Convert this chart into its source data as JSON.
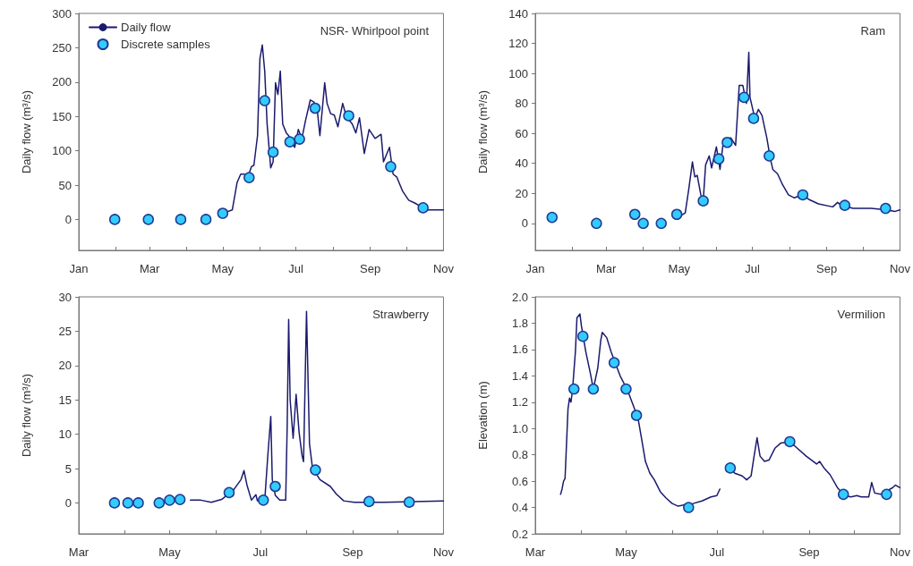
{
  "chart_data": [
    {
      "type": "line",
      "title": "NSR- Whirlpool point",
      "ylabel": "Daily flow (m³/s)",
      "legend": "top left",
      "grid": false,
      "xlim": [
        "--01-01",
        "--11-01"
      ],
      "xticks": [
        {
          "value": "--01-01",
          "label": "Jan"
        },
        {
          "value": "--02-01",
          "label": null
        },
        {
          "value": "--03-01",
          "label": "Mar"
        },
        {
          "value": "--04-01",
          "label": null
        },
        {
          "value": "--05-01",
          "label": "May"
        },
        {
          "value": "--06-01",
          "label": null
        },
        {
          "value": "--07-01",
          "label": "Jul"
        },
        {
          "value": "--08-01",
          "label": null
        },
        {
          "value": "--09-01",
          "label": "Sep"
        },
        {
          "value": "--10-01",
          "label": null
        },
        {
          "value": "--11-01",
          "label": "Nov"
        }
      ],
      "ylim": [
        -45,
        300
      ],
      "yticks": [
        0,
        50,
        100,
        150,
        200,
        250,
        300
      ],
      "series": [
        {
          "name": "Daily flow",
          "type": "line",
          "marker": "none",
          "color": "#1a1a6e",
          "x": [
            "--05-03",
            "--05-09",
            "--05-13",
            "--05-16",
            "--05-19",
            "--05-22",
            "--05-25",
            "--05-27",
            "--05-30",
            "--06-01",
            "--06-03",
            "--06-05",
            "--06-07",
            "--06-10",
            "--06-12",
            "--06-14",
            "--06-16",
            "--06-18",
            "--06-20",
            "--06-23",
            "--06-25",
            "--06-30",
            "--07-03",
            "--07-06",
            "--07-09",
            "--07-13",
            "--07-16",
            "--07-19",
            "--07-21",
            "--07-25",
            "--07-27",
            "--07-30",
            "--08-02",
            "--08-05",
            "--08-09",
            "--08-12",
            "--08-17",
            "--08-20",
            "--08-23",
            "--08-27",
            "--08-31",
            "--09-05",
            "--09-10",
            "--09-12",
            "--09-17",
            "--09-20",
            "--09-23",
            "--09-28",
            "--10-03",
            "--10-08",
            "--10-13",
            "--10-18",
            "--11-01"
          ],
          "values": [
            10,
            14,
            54,
            66,
            66,
            62,
            77,
            79,
            122,
            234,
            254,
            216,
            139,
            75,
            84,
            199,
            182,
            216,
            139,
            126,
            122,
            105,
            131,
            118,
            144,
            174,
            171,
            156,
            122,
            199,
            169,
            154,
            152,
            135,
            169,
            150,
            139,
            126,
            148,
            96,
            131,
            118,
            124,
            84,
            105,
            66,
            62,
            41,
            28,
            24,
            19,
            14,
            14
          ]
        },
        {
          "name": "Discrete samples",
          "type": "scatter",
          "marker": "circle",
          "color": "#33ccff",
          "x": [
            "--01-31",
            "--02-28",
            "--03-27",
            "--04-17",
            "--05-01",
            "--05-23",
            "--06-05",
            "--06-12",
            "--06-26",
            "--07-04",
            "--07-17",
            "--08-14",
            "--09-18",
            "--10-15"
          ],
          "values": [
            0,
            0,
            0,
            0,
            9,
            61,
            173,
            98,
            113,
            117,
            162,
            151,
            77,
            17
          ]
        }
      ]
    },
    {
      "type": "line",
      "title": "Ram",
      "ylabel": "Daily flow (m³/s)",
      "grid": false,
      "xlim": [
        "--01-01",
        "--11-01"
      ],
      "xticks": [
        {
          "value": "--01-01",
          "label": "Jan"
        },
        {
          "value": "--02-01",
          "label": null
        },
        {
          "value": "--03-01",
          "label": "Mar"
        },
        {
          "value": "--04-01",
          "label": null
        },
        {
          "value": "--05-01",
          "label": "May"
        },
        {
          "value": "--06-01",
          "label": null
        },
        {
          "value": "--07-01",
          "label": "Jul"
        },
        {
          "value": "--08-01",
          "label": null
        },
        {
          "value": "--09-01",
          "label": "Sep"
        },
        {
          "value": "--10-01",
          "label": null
        },
        {
          "value": "--11-01",
          "label": "Nov"
        }
      ],
      "ylim": [
        -18,
        140
      ],
      "yticks": [
        0,
        20,
        40,
        60,
        80,
        100,
        120,
        140
      ],
      "series": [
        {
          "type": "line",
          "marker": "none",
          "color": "#1a1a6e",
          "x": [
            "--05-02",
            "--05-06",
            "--05-09",
            "--05-12",
            "--05-14",
            "--05-16",
            "--05-19",
            "--05-21",
            "--05-23",
            "--05-26",
            "--05-28",
            "--06-01",
            "--06-04",
            "--06-07",
            "--06-13",
            "--06-17",
            "--06-20",
            "--06-23",
            "--06-26",
            "--06-28",
            "--06-29",
            "--07-03",
            "--07-06",
            "--07-09",
            "--07-13",
            "--07-16",
            "--07-18",
            "--07-22",
            "--07-26",
            "--07-31",
            "--08-05",
            "--08-11",
            "--08-17",
            "--08-25",
            "--09-06",
            "--09-10",
            "--09-13",
            "--09-23",
            "--10-08",
            "--10-21",
            "--10-28",
            "--11-01"
          ],
          "values": [
            5,
            7,
            23,
            41,
            31,
            32,
            19,
            15,
            39,
            45,
            37,
            51,
            36,
            56,
            57,
            52,
            92,
            92,
            80,
            114,
            84,
            70,
            76,
            72,
            57,
            43,
            36,
            33,
            26,
            19,
            17,
            19,
            16,
            13,
            11,
            14,
            12,
            10,
            10,
            9,
            8,
            9
          ]
        },
        {
          "type": "scatter",
          "marker": "circle",
          "color": "#33ccff",
          "x": [
            "--01-15",
            "--02-21",
            "--03-25",
            "--04-01",
            "--04-16",
            "--04-29",
            "--05-21",
            "--06-03",
            "--06-10",
            "--06-24",
            "--07-02",
            "--07-15",
            "--08-12",
            "--09-16",
            "--10-20"
          ],
          "values": [
            4,
            0,
            6,
            0,
            0,
            6,
            15,
            43,
            54,
            84,
            70,
            45,
            19,
            12,
            10
          ]
        }
      ]
    },
    {
      "type": "line",
      "title": "Strawberry",
      "ylabel": "Daily flow (m³/s)",
      "grid": false,
      "xlim": [
        "--03-01",
        "--11-01"
      ],
      "xticks": [
        {
          "value": "--03-01",
          "label": "Mar"
        },
        {
          "value": "--04-01",
          "label": null
        },
        {
          "value": "--05-01",
          "label": "May"
        },
        {
          "value": "--06-01",
          "label": null
        },
        {
          "value": "--07-01",
          "label": "Jul"
        },
        {
          "value": "--08-01",
          "label": null
        },
        {
          "value": "--09-01",
          "label": "Sep"
        },
        {
          "value": "--10-01",
          "label": null
        },
        {
          "value": "--11-01",
          "label": "Nov"
        }
      ],
      "ylim": [
        -4.5,
        30
      ],
      "yticks": [
        0,
        5,
        10,
        15,
        20,
        25,
        30
      ],
      "series": [
        {
          "type": "line",
          "marker": "none",
          "color": "#1a1a6e",
          "x": [
            "--05-15",
            "--05-22",
            "--05-29",
            "--06-05",
            "--06-13",
            "--06-18",
            "--06-20",
            "--06-22",
            "--06-25",
            "--06-28",
            "--06-29",
            "--07-04",
            "--07-06",
            "--07-08",
            "--07-09",
            "--07-11",
            "--07-14",
            "--07-18",
            "--07-19",
            "--07-20",
            "--07-21",
            "--07-23",
            "--07-25",
            "--07-27",
            "--07-29",
            "--07-30",
            "--08-01",
            "--08-03",
            "--08-05",
            "--08-10",
            "--08-17",
            "--08-21",
            "--08-26",
            "--09-02",
            "--09-22",
            "--10-12",
            "--11-01"
          ],
          "values": [
            0.4,
            0.4,
            0.1,
            0.5,
            1.9,
            3.4,
            4.7,
            2.6,
            0.4,
            1.2,
            0.3,
            0.6,
            6.9,
            12.6,
            3.4,
            1.1,
            0.4,
            0.4,
            11,
            26.7,
            15,
            9.4,
            15.8,
            10.3,
            6.9,
            6,
            27.9,
            8.6,
            5.1,
            3.4,
            2.4,
            1.3,
            0.3,
            0.1,
            0.1,
            0.2,
            0.3
          ]
        },
        {
          "type": "scatter",
          "marker": "circle",
          "color": "#33ccff",
          "x": [
            "--03-25",
            "--04-03",
            "--04-10",
            "--04-24",
            "--05-01",
            "--05-08",
            "--06-10",
            "--07-03",
            "--07-11",
            "--08-07",
            "--09-12",
            "--10-09"
          ],
          "values": [
            0,
            0,
            0,
            0,
            0.4,
            0.5,
            1.5,
            0.4,
            2.4,
            4.8,
            0.2,
            0.1
          ]
        }
      ]
    },
    {
      "type": "line",
      "title": "Vermilion",
      "ylabel": "Elevation (m)",
      "grid": false,
      "xlim": [
        "--03-01",
        "--11-01"
      ],
      "xticks": [
        {
          "value": "--03-01",
          "label": "Mar"
        },
        {
          "value": "--04-01",
          "label": null
        },
        {
          "value": "--05-01",
          "label": "May"
        },
        {
          "value": "--06-01",
          "label": null
        },
        {
          "value": "--07-01",
          "label": "Jul"
        },
        {
          "value": "--08-01",
          "label": null
        },
        {
          "value": "--09-01",
          "label": "Sep"
        },
        {
          "value": "--10-01",
          "label": null
        },
        {
          "value": "--11-01",
          "label": "Nov"
        }
      ],
      "ylim": [
        0.2,
        2.0
      ],
      "yticks": [
        0.2,
        0.4,
        0.6,
        0.8,
        {
          "value": 1.0,
          "label": "1.0"
        },
        1.2,
        1.4,
        1.6,
        1.8,
        {
          "value": 2.0,
          "label": "2.0"
        }
      ],
      "series": [
        {
          "type": "line",
          "marker": "none",
          "color": "#1a1a6e",
          "x": [
            "--03-18",
            "--03-19",
            "--03-20",
            "--03-21",
            "--03-23",
            "--03-24",
            "--03-25",
            "--03-26",
            "--03-28",
            "--03-29",
            "--03-31",
            "--04-01",
            "--04-04",
            "--04-07",
            "--04-09",
            "--04-12",
            "--04-14",
            "--04-15",
            "--04-18",
            "--04-21",
            "--04-24",
            "--04-27",
            "--05-02",
            "--05-05",
            "--05-09",
            "--05-11",
            "--05-14",
            "--05-17",
            "--05-20",
            "--05-24",
            "--05-28",
            "--06-01",
            "--06-05",
            "--06-09",
            "--06-15",
            "--06-21",
            "--06-27",
            "--07-01",
            "--07-03",
            "--07-06",
            "--07-10",
            "--07-13",
            "--07-18",
            "--07-21",
            "--07-24",
            "--07-26",
            "--07-28",
            "--07-30",
            "--08-02",
            "--08-05",
            "--08-09",
            "--08-13",
            "--08-19",
            "--08-24",
            "--08-30",
            "--09-06",
            "--09-08",
            "--09-11",
            "--09-15",
            "--09-20",
            "--09-25",
            "--09-29",
            "--10-03",
            "--10-06",
            "--10-11",
            "--10-13",
            "--10-15",
            "--10-19",
            "--10-27",
            "--10-29",
            "--11-01"
          ],
          "values": [
            0.5,
            0.54,
            0.6,
            0.62,
            1.15,
            1.23,
            1.2,
            1.29,
            1.59,
            1.84,
            1.87,
            1.78,
            1.58,
            1.42,
            1.3,
            1.46,
            1.67,
            1.73,
            1.69,
            1.58,
            1.49,
            1.4,
            1.29,
            1.2,
            1.08,
            0.95,
            0.75,
            0.66,
            0.61,
            0.52,
            0.47,
            0.43,
            0.41,
            0.42,
            0.43,
            0.45,
            0.48,
            0.49,
            0.54,
            null,
            0.7,
            0.66,
            0.64,
            0.61,
            0.64,
            0.79,
            0.93,
            0.79,
            0.75,
            0.76,
            0.85,
            0.89,
            0.9,
            0.85,
            0.79,
            0.73,
            0.75,
            0.7,
            0.65,
            0.55,
            0.49,
            0.48,
            0.49,
            0.48,
            0.48,
            0.59,
            0.51,
            0.5,
            0.55,
            0.57,
            0.55
          ]
        },
        {
          "type": "scatter",
          "marker": "circle",
          "color": "#33ccff",
          "x": [
            "--03-27",
            "--04-02",
            "--04-09",
            "--04-23",
            "--05-01",
            "--05-08",
            "--06-12",
            "--07-10",
            "--08-19",
            "--09-24",
            "--10-23"
          ],
          "values": [
            1.3,
            1.7,
            1.3,
            1.5,
            1.3,
            1.1,
            0.4,
            0.7,
            0.9,
            0.5,
            0.5
          ]
        }
      ]
    }
  ]
}
